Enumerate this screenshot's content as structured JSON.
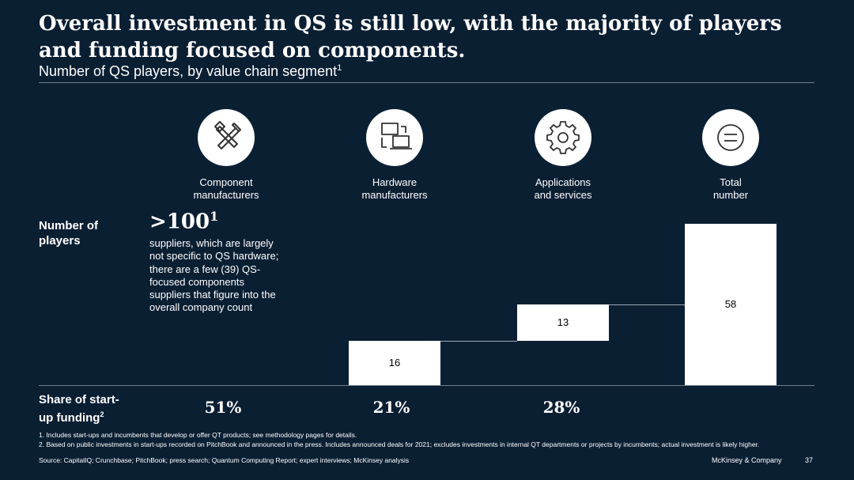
{
  "title": "Overall investment in QS is still low, with the majority of players and funding focused on components.",
  "subtitle": "Number of QS players, by value chain segment",
  "subtitle_sup": "1",
  "columns": [
    {
      "icon": "hammer-wrench-icon",
      "label_line1": "Component",
      "label_line2": "manufacturers"
    },
    {
      "icon": "hardware-devices-icon",
      "label_line1": "Hardware",
      "label_line2": "manufacturers"
    },
    {
      "icon": "gear-icon",
      "label_line1": "Applications",
      "label_line2": "and services"
    },
    {
      "icon": "equals-icon",
      "label_line1": "Total",
      "label_line2": "number"
    }
  ],
  "row_players": {
    "line1": "Number of",
    "line2": "players"
  },
  "row_funding": {
    "line1": "Share of start-",
    "line2": "up funding",
    "sup": "2"
  },
  "component_count": {
    "value": ">100",
    "sup": "1",
    "description": "suppliers, which are largely not specific to QS hardware; there are a few (39) QS- focused components suppliers that figure into the overall company count"
  },
  "chart_data": {
    "type": "bar",
    "subtype": "waterfall",
    "title": "Number of QS players, by value chain segment",
    "categories": [
      "Hardware manufacturers",
      "Applications and services",
      "Total number"
    ],
    "values": [
      16,
      13,
      58
    ],
    "series_kind": [
      "increment",
      "increment",
      "total"
    ],
    "labels": [
      "16",
      "13",
      "58"
    ]
  },
  "funding_shares": [
    "51%",
    "21%",
    "28%"
  ],
  "footnotes": [
    "1. Includes start-ups and incumbents that develop or offer QT products; see methodology pages for details.",
    "2. Based on public investments in start-ups recorded on PitchBook and announced in the press. Includes announced deals for 2021; excludes investments in internal QT departments or projects by incumbents; actual investment is likely higher."
  ],
  "source": "Source: CapitalIQ; Crunchbase; PitchBook; press search; Quantum Computing Report; expert interviews; McKinsey analysis",
  "brand": "McKinsey & Company",
  "page_number": "37"
}
